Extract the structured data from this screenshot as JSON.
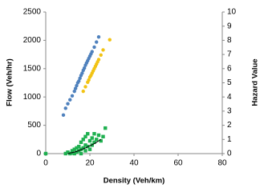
{
  "chart_data": {
    "type": "scatter",
    "x_label": "Density (Veh/km)",
    "y_label": "Flow (Veh/hr)",
    "y2_label": "Hazard Value",
    "xlim": [
      0,
      80
    ],
    "xticks": [
      0,
      20,
      40,
      60,
      80
    ],
    "ylim": [
      0,
      2500
    ],
    "yticks": [
      0,
      500,
      1000,
      1500,
      2000,
      2500
    ],
    "y2lim": [
      0,
      10
    ],
    "y2ticks": [
      0,
      1,
      2,
      3,
      4,
      5,
      6,
      7,
      8,
      9,
      10
    ],
    "grid": false,
    "series": [
      {
        "color": "#4f81bd",
        "marker": "circle",
        "axis": "y",
        "x": [
          8,
          9,
          10,
          11,
          12,
          13,
          13.5,
          14,
          14.5,
          15,
          15.5,
          16,
          16.5,
          17,
          17.5,
          18,
          18.5,
          19,
          19.5,
          20,
          20.5,
          21,
          22,
          23,
          24
        ],
        "values": [
          680,
          800,
          880,
          950,
          1020,
          1100,
          1150,
          1200,
          1250,
          1280,
          1330,
          1380,
          1420,
          1470,
          1510,
          1560,
          1600,
          1640,
          1680,
          1720,
          1760,
          1800,
          1880,
          1970,
          2060
        ]
      },
      {
        "color": "#f2c314",
        "marker": "circle",
        "axis": "y",
        "x": [
          17,
          18,
          19,
          19.5,
          20,
          20.5,
          21,
          21.5,
          22,
          22.5,
          23,
          23.5,
          24,
          25,
          26,
          29
        ],
        "values": [
          1100,
          1180,
          1260,
          1300,
          1350,
          1380,
          1420,
          1460,
          1500,
          1540,
          1580,
          1620,
          1660,
          1740,
          1830,
          2010
        ]
      },
      {
        "color": "#1fb050",
        "marker": "square",
        "axis": "y2",
        "x": [
          0,
          9,
          10,
          11,
          12,
          12,
          13,
          13,
          14,
          14,
          15,
          15,
          16,
          16,
          16,
          17,
          17,
          18,
          18,
          18,
          19,
          19,
          20,
          20,
          21,
          21,
          22,
          22,
          23,
          24,
          25,
          26,
          27
        ],
        "values": [
          0,
          0,
          0.1,
          0,
          0.05,
          0.2,
          0,
          0.3,
          0.1,
          0.4,
          0.2,
          0.5,
          0,
          0.3,
          0.8,
          0.4,
          1.0,
          0.2,
          0.6,
          1.2,
          0.5,
          1.4,
          0.3,
          0.9,
          0.6,
          1.1,
          0.8,
          1.4,
          1.0,
          1.3,
          0.9,
          1.2,
          1.8
        ]
      },
      {
        "color": "#000000",
        "marker": "line",
        "axis": "y2",
        "x": [
          10,
          14,
          18,
          22,
          25
        ],
        "values": [
          0,
          0.15,
          0.4,
          0.7,
          1.0
        ]
      }
    ]
  }
}
